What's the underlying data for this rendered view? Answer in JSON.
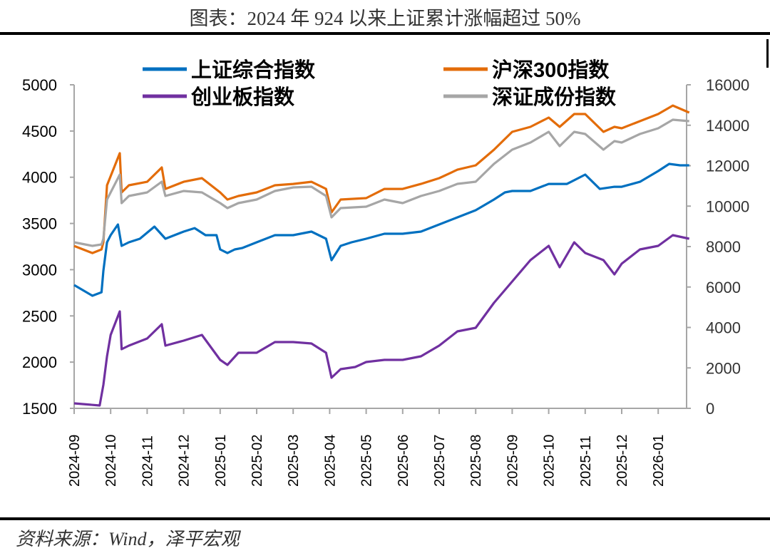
{
  "title": "图表：2024 年 924 以来上证累计涨幅超过 50%",
  "source": "资料来源：Wind，泽平宏观",
  "chart_data": {
    "type": "line",
    "title": "图表：2024 年 924 以来上证累计涨幅超过 50%",
    "x_unit": "months since 2024-09",
    "x_tick_labels": [
      "2024-09",
      "2024-10",
      "2024-11",
      "2024-12",
      "2025-01",
      "2025-02",
      "2025-03",
      "2025-04",
      "2025-05",
      "2025-06",
      "2025-07",
      "2025-08",
      "2025-09",
      "2025-10",
      "2025-11",
      "2025-12",
      "2026-01"
    ],
    "left_axis": {
      "ylim": [
        1500,
        5000
      ],
      "ticks": [
        "1500",
        "2000",
        "2500",
        "3000",
        "3500",
        "4000",
        "4500",
        "5000"
      ]
    },
    "right_axis": {
      "ylim": [
        0,
        16000
      ],
      "ticks": [
        "0",
        "2000",
        "4000",
        "6000",
        "8000",
        "10000",
        "12000",
        "14000",
        "16000"
      ]
    },
    "legend": "top",
    "series": [
      {
        "name": "上证综合指数",
        "axis": "left",
        "color": "#0070C0",
        "x": [
          0,
          0.5,
          0.75,
          0.8,
          0.9,
          1.0,
          1.2,
          1.3,
          1.5,
          1.8,
          2.2,
          2.5,
          3.0,
          3.3,
          3.6,
          3.9,
          4.0,
          4.2,
          4.4,
          4.6,
          5.0,
          5.5,
          6.0,
          6.5,
          6.9,
          7.05,
          7.3,
          7.6,
          8.0,
          8.5,
          9.0,
          9.5,
          10,
          10.5,
          11,
          11.5,
          11.8,
          12,
          12.5,
          13,
          13.5,
          14,
          14.4,
          14.8,
          15,
          15.5,
          16,
          16.3,
          16.6,
          16.85
        ],
        "values": [
          2834,
          2718,
          2756,
          2988,
          3296,
          3373,
          3489,
          3258,
          3296,
          3335,
          3466,
          3335,
          3412,
          3450,
          3373,
          3373,
          3219,
          3180,
          3219,
          3234,
          3296,
          3373,
          3373,
          3412,
          3335,
          3103,
          3258,
          3296,
          3335,
          3389,
          3389,
          3412,
          3489,
          3566,
          3643,
          3759,
          3836,
          3851,
          3851,
          3928,
          3928,
          4029,
          3874,
          3897,
          3897,
          3951,
          4067,
          4144,
          4129,
          4129
        ]
      },
      {
        "name": "沪深300指数",
        "axis": "left",
        "color": "#E36C09",
        "x": [
          0,
          0.5,
          0.75,
          0.8,
          0.9,
          1.25,
          1.3,
          1.5,
          2.0,
          2.4,
          2.5,
          3.0,
          3.5,
          4.0,
          4.2,
          4.5,
          5.0,
          5.5,
          6.0,
          6.5,
          6.9,
          7.05,
          7.3,
          8.0,
          8.5,
          9.0,
          9.5,
          10,
          10.5,
          11,
          11.5,
          12,
          12.5,
          13,
          13.3,
          13.7,
          14,
          14.5,
          14.8,
          15,
          15.5,
          16,
          16.4,
          16.85
        ],
        "values": [
          3257,
          3180,
          3219,
          3296,
          3913,
          4260,
          3836,
          3913,
          3951,
          4106,
          3874,
          3951,
          3990,
          3836,
          3759,
          3797,
          3836,
          3913,
          3928,
          3951,
          3874,
          3620,
          3759,
          3774,
          3874,
          3874,
          3928,
          3990,
          4082,
          4129,
          4298,
          4491,
          4545,
          4645,
          4545,
          4684,
          4684,
          4491,
          4545,
          4530,
          4607,
          4684,
          4776,
          4699
        ]
      },
      {
        "name": "创业板指数",
        "axis": "right",
        "color": "#7030A0",
        "x": [
          0,
          0.7,
          0.8,
          0.9,
          1.0,
          1.25,
          1.3,
          1.5,
          2.0,
          2.4,
          2.5,
          3.0,
          3.5,
          4.0,
          4.2,
          4.5,
          5.0,
          5.5,
          6.0,
          6.5,
          6.9,
          7.05,
          7.3,
          7.7,
          8.0,
          8.5,
          9.0,
          9.5,
          10,
          10.5,
          11,
          11.5,
          12,
          12.5,
          13,
          13.3,
          13.7,
          14,
          14.5,
          14.8,
          15,
          15.5,
          16,
          16.4,
          16.85
        ],
        "values": [
          247,
          141,
          1163,
          2573,
          3630,
          4793,
          2925,
          3101,
          3454,
          4158,
          3101,
          3348,
          3630,
          2396,
          2150,
          2749,
          2749,
          3277,
          3277,
          3207,
          2749,
          1515,
          1938,
          2044,
          2291,
          2396,
          2396,
          2573,
          3101,
          3806,
          3982,
          5216,
          6273,
          7330,
          8035,
          6978,
          8211,
          7682,
          7330,
          6625,
          7154,
          7859,
          8035,
          8563,
          8387
        ]
      },
      {
        "name": "深证成份指数",
        "axis": "right",
        "color": "#A6A6A6",
        "x": [
          0,
          0.5,
          0.75,
          0.8,
          0.9,
          1.25,
          1.3,
          1.5,
          2.0,
          2.4,
          2.5,
          3.0,
          3.5,
          4.0,
          4.2,
          4.5,
          5.0,
          5.5,
          6.0,
          6.5,
          6.9,
          7.05,
          7.3,
          8.0,
          8.5,
          9.0,
          9.5,
          10,
          10.5,
          11,
          11.5,
          12,
          12.5,
          13,
          13.3,
          13.7,
          14,
          14.5,
          14.8,
          15,
          15.5,
          16,
          16.4,
          16.85
        ],
        "values": [
          8211,
          8035,
          8105,
          8387,
          10325,
          11559,
          10149,
          10502,
          10677,
          11206,
          10502,
          10748,
          10677,
          10149,
          9902,
          10149,
          10325,
          10748,
          10924,
          10960,
          10502,
          9444,
          9902,
          9973,
          10325,
          10149,
          10502,
          10748,
          11101,
          11206,
          12087,
          12792,
          13145,
          13673,
          12968,
          13673,
          13567,
          12792,
          13215,
          13145,
          13567,
          13849,
          14272,
          14202
        ]
      }
    ]
  }
}
